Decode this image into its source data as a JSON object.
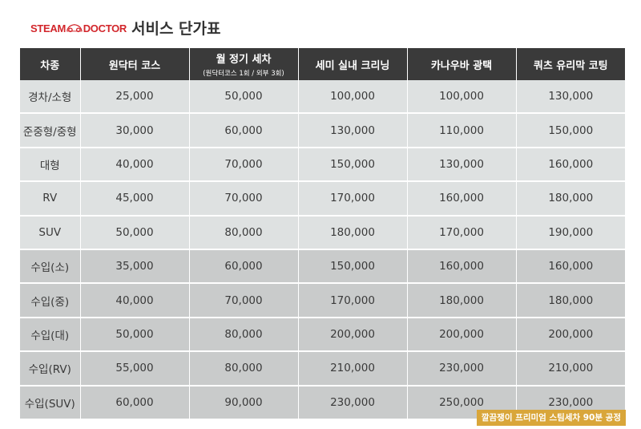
{
  "brand": {
    "logo_left": "STEAM",
    "logo_right": "DOCTOR",
    "accent_color": "#d2262b"
  },
  "title": "서비스 단가표",
  "table": {
    "headers": [
      {
        "label": "차종",
        "sub": ""
      },
      {
        "label": "원닥터 코스",
        "sub": ""
      },
      {
        "label": "월 정기 세차",
        "sub": "(원닥터코스 1회 / 외부 3회)"
      },
      {
        "label": "세미 실내 크리닝",
        "sub": ""
      },
      {
        "label": "카나우바 광택",
        "sub": ""
      },
      {
        "label": "쿼츠 유리막 코팅",
        "sub": ""
      }
    ],
    "rows": [
      {
        "group": "domestic",
        "cells": [
          "경차/소형",
          "25,000",
          "50,000",
          "100,000",
          "100,000",
          "130,000"
        ]
      },
      {
        "group": "domestic",
        "cells": [
          "준중형/중형",
          "30,000",
          "60,000",
          "130,000",
          "110,000",
          "150,000"
        ]
      },
      {
        "group": "domestic",
        "cells": [
          "대형",
          "40,000",
          "70,000",
          "150,000",
          "130,000",
          "160,000"
        ]
      },
      {
        "group": "domestic",
        "cells": [
          "RV",
          "45,000",
          "70,000",
          "170,000",
          "160,000",
          "180,000"
        ]
      },
      {
        "group": "domestic",
        "cells": [
          "SUV",
          "50,000",
          "80,000",
          "180,000",
          "170,000",
          "190,000"
        ]
      },
      {
        "group": "imported",
        "cells": [
          "수입(소)",
          "35,000",
          "60,000",
          "150,000",
          "160,000",
          "160,000"
        ]
      },
      {
        "group": "imported",
        "cells": [
          "수입(중)",
          "40,000",
          "70,000",
          "170,000",
          "180,000",
          "180,000"
        ]
      },
      {
        "group": "imported",
        "cells": [
          "수입(대)",
          "50,000",
          "80,000",
          "200,000",
          "200,000",
          "200,000"
        ]
      },
      {
        "group": "imported",
        "cells": [
          "수입(RV)",
          "55,000",
          "80,000",
          "210,000",
          "230,000",
          "210,000"
        ]
      },
      {
        "group": "imported",
        "cells": [
          "수입(SUV)",
          "60,000",
          "90,000",
          "230,000",
          "250,000",
          "230,000"
        ]
      }
    ],
    "colors": {
      "header_bg": "#3a3a3a",
      "domestic_bg": "#dee1e1",
      "imported_bg": "#c9cbcb"
    }
  },
  "footnote": {
    "text": "깔끔쟁이 프리미엄 스팀세차 90분 공정",
    "color": "#d9a63a"
  }
}
